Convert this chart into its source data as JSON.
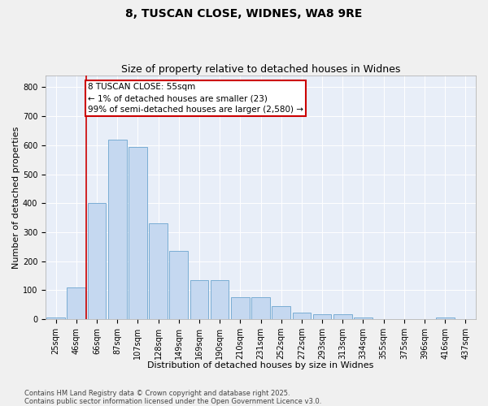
{
  "title1": "8, TUSCAN CLOSE, WIDNES, WA8 9RE",
  "title2": "Size of property relative to detached houses in Widnes",
  "xlabel": "Distribution of detached houses by size in Widnes",
  "ylabel": "Number of detached properties",
  "categories": [
    "25sqm",
    "46sqm",
    "66sqm",
    "87sqm",
    "107sqm",
    "128sqm",
    "149sqm",
    "169sqm",
    "190sqm",
    "210sqm",
    "231sqm",
    "252sqm",
    "272sqm",
    "293sqm",
    "313sqm",
    "334sqm",
    "355sqm",
    "375sqm",
    "396sqm",
    "416sqm",
    "437sqm"
  ],
  "values": [
    5,
    110,
    400,
    620,
    595,
    330,
    235,
    135,
    135,
    75,
    75,
    45,
    22,
    18,
    18,
    5,
    0,
    0,
    0,
    5,
    0
  ],
  "bar_color": "#c5d8f0",
  "bar_edge_color": "#7aadd4",
  "background_color": "#e8eef8",
  "grid_color": "#ffffff",
  "vline_x_idx": 1.5,
  "vline_color": "#cc0000",
  "annotation_text": "8 TUSCAN CLOSE: 55sqm\n← 1% of detached houses are smaller (23)\n99% of semi-detached houses are larger (2,580) →",
  "ylim": [
    0,
    840
  ],
  "yticks": [
    0,
    100,
    200,
    300,
    400,
    500,
    600,
    700,
    800
  ],
  "footer_text": "Contains HM Land Registry data © Crown copyright and database right 2025.\nContains public sector information licensed under the Open Government Licence v3.0.",
  "title1_fontsize": 10,
  "title2_fontsize": 9,
  "axis_label_fontsize": 8,
  "tick_fontsize": 7,
  "footer_fontsize": 6,
  "ann_fontsize": 7.5
}
